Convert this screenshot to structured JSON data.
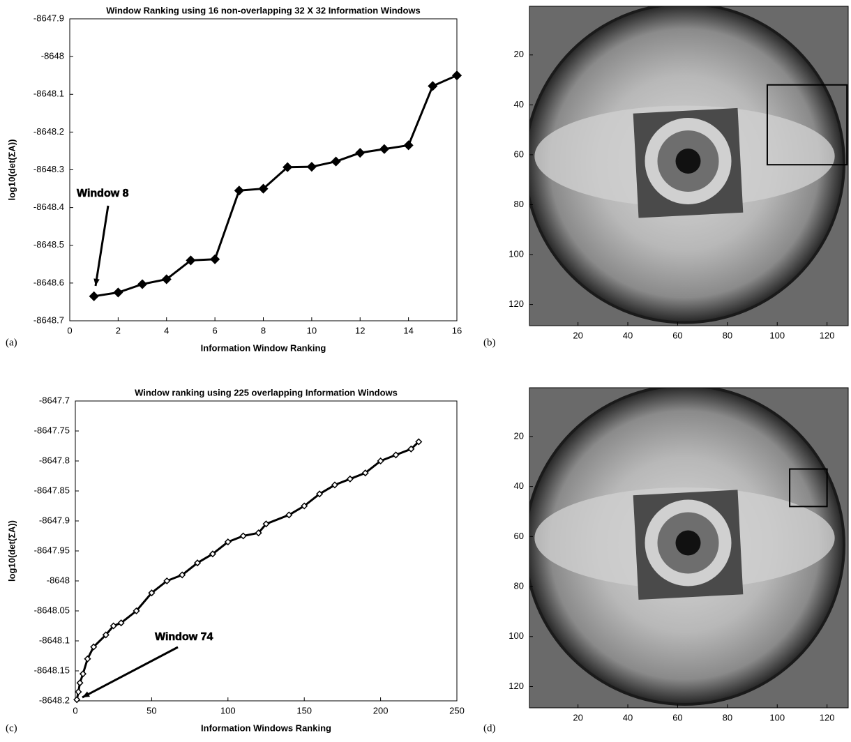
{
  "chart_data": [
    {
      "type": "line",
      "title": "Window Ranking using 16 non-overlapping 32 X 32 Information Windows",
      "xlabel": "Information Window Ranking",
      "ylabel": "log10(det(ΣA))",
      "panel_label": "(a)",
      "annotation": "Window 8",
      "color": "#000000",
      "marker": "diamond",
      "x": [
        1,
        2,
        3,
        4,
        5,
        6,
        7,
        8,
        9,
        10,
        11,
        12,
        13,
        14,
        15,
        16
      ],
      "values": [
        -8648.635,
        -8648.625,
        -8648.603,
        -8648.59,
        -8648.54,
        -8648.537,
        -8648.355,
        -8648.35,
        -8648.293,
        -8648.292,
        -8648.278,
        -8648.255,
        -8648.245,
        -8648.235,
        -8648.078,
        -8648.05
      ],
      "xlim": [
        0,
        16
      ],
      "xticks": [
        0,
        2,
        4,
        6,
        8,
        10,
        12,
        14,
        16
      ],
      "ylim": [
        -8648.7,
        -8647.9
      ],
      "yticks": [
        -8648.7,
        -8648.6,
        -8648.5,
        -8648.4,
        -8648.3,
        -8648.2,
        -8648.1,
        -8648,
        -8647.9
      ]
    },
    {
      "type": "image",
      "panel_label": "(b)",
      "xlim": [
        0.5,
        128.5
      ],
      "xticks": [
        20,
        40,
        60,
        80,
        100,
        120
      ],
      "ylim": [
        128.5,
        0.5
      ],
      "yticks": [
        20,
        40,
        60,
        80,
        100,
        120
      ],
      "rectangle": [
        96,
        32,
        128,
        64
      ]
    },
    {
      "type": "line",
      "title": "Window ranking using 225 overlapping Information Windows",
      "xlabel": "Information Windows Ranking",
      "ylabel": "log10(det(ΣA))",
      "panel_label": "(c)",
      "annotation": "Window 74",
      "color": "#000000",
      "marker": "small-diamond",
      "x": [
        1,
        2,
        3,
        5,
        8,
        12,
        20,
        25,
        30,
        40,
        50,
        60,
        70,
        80,
        90,
        100,
        110,
        120,
        125,
        140,
        150,
        160,
        170,
        180,
        190,
        200,
        210,
        220,
        225
      ],
      "values": [
        -8648.198,
        -8648.185,
        -8648.17,
        -8648.155,
        -8648.13,
        -8648.11,
        -8648.09,
        -8648.075,
        -8648.07,
        -8648.05,
        -8648.02,
        -8648.0,
        -8647.99,
        -8647.97,
        -8647.955,
        -8647.935,
        -8647.925,
        -8647.92,
        -8647.905,
        -8647.89,
        -8647.875,
        -8647.855,
        -8647.84,
        -8647.83,
        -8647.82,
        -8647.8,
        -8647.79,
        -8647.78,
        -8647.768
      ],
      "xlim": [
        0,
        250
      ],
      "xticks": [
        0,
        50,
        100,
        150,
        200,
        250
      ],
      "ylim": [
        -8648.2,
        -8647.7
      ],
      "yticks": [
        -8648.2,
        -8648.15,
        -8648.1,
        -8648.05,
        -8648,
        -8647.95,
        -8647.9,
        -8647.85,
        -8647.8,
        -8647.75,
        -8647.7
      ]
    },
    {
      "type": "image",
      "panel_label": "(d)",
      "xlim": [
        0.5,
        128.5
      ],
      "xticks": [
        20,
        40,
        60,
        80,
        100,
        120
      ],
      "ylim": [
        128.5,
        0.5
      ],
      "yticks": [
        20,
        40,
        60,
        80,
        100,
        120
      ],
      "rectangle": [
        105,
        33,
        120,
        48
      ]
    }
  ]
}
